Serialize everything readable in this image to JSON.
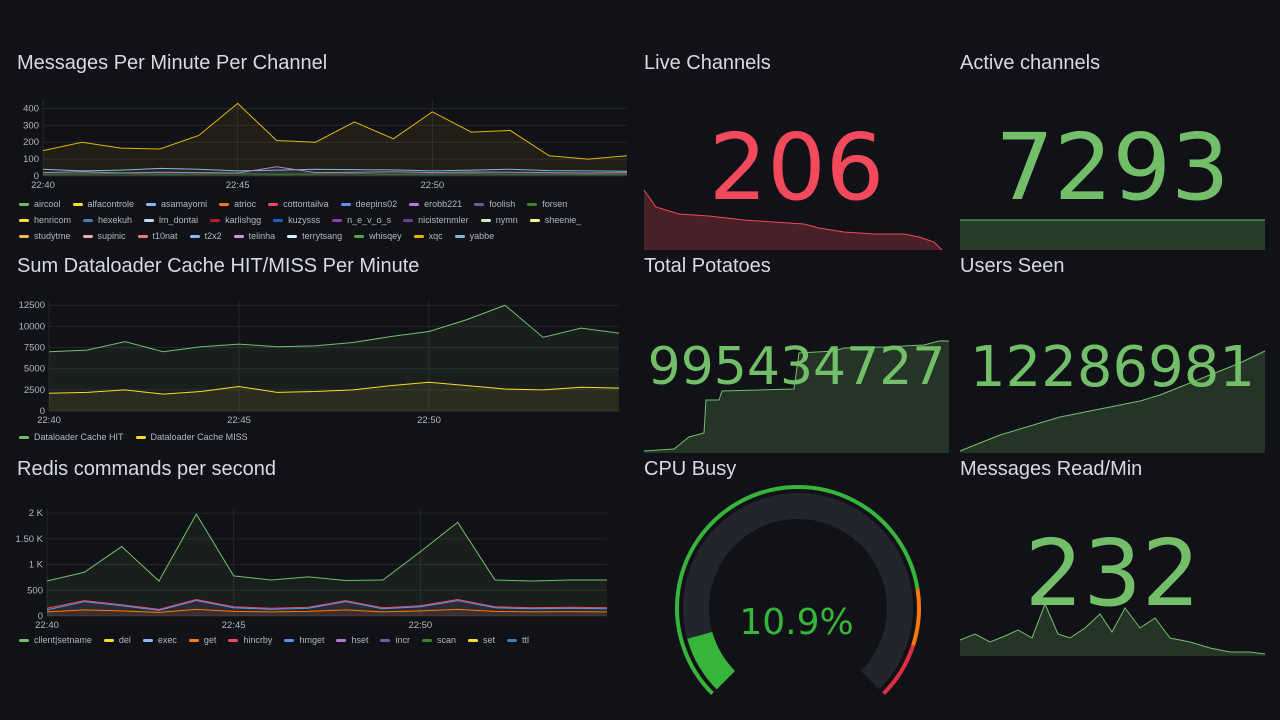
{
  "colors": {
    "green": "#73bf69",
    "red": "#f2495c",
    "bg": "#111217",
    "text": "#ccccdc",
    "grid": "#24262d"
  },
  "panels": {
    "messages": {
      "title": "Messages Per Minute Per Channel",
      "legend": [
        {
          "name": "aircool",
          "color": "#73bf69"
        },
        {
          "name": "alfacontrole",
          "color": "#fade2a"
        },
        {
          "name": "asamayomi",
          "color": "#8ab8ff"
        },
        {
          "name": "atrioc",
          "color": "#ff780a"
        },
        {
          "name": "cottontailva",
          "color": "#f2495c"
        },
        {
          "name": "deepins02",
          "color": "#5794f2"
        },
        {
          "name": "erobb221",
          "color": "#b877d9"
        },
        {
          "name": "foolish",
          "color": "#705da0"
        },
        {
          "name": "forsen",
          "color": "#37872d"
        },
        {
          "name": "henricom",
          "color": "#fade2a"
        },
        {
          "name": "hexekuh",
          "color": "#447ebc"
        },
        {
          "name": "lm_dontai",
          "color": "#c0d8ff"
        },
        {
          "name": "karlishgg",
          "color": "#c4162a"
        },
        {
          "name": "kuzysss",
          "color": "#1f60c4"
        },
        {
          "name": "n_e_v_o_s",
          "color": "#8f3bb8"
        },
        {
          "name": "nicistemmler",
          "color": "#6e3da0"
        },
        {
          "name": "nymn",
          "color": "#c8f2c2"
        },
        {
          "name": "sheenie_",
          "color": "#fff899"
        },
        {
          "name": "studytme",
          "color": "#ffb357"
        },
        {
          "name": "supinic",
          "color": "#ffa6b0"
        },
        {
          "name": "t10nat",
          "color": "#ff7383"
        },
        {
          "name": "t2x2",
          "color": "#8ab8ff"
        },
        {
          "name": "telinha",
          "color": "#ca95e5"
        },
        {
          "name": "terrytsang",
          "color": "#caf2ff"
        },
        {
          "name": "whisqey",
          "color": "#56a64b"
        },
        {
          "name": "xqc",
          "color": "#e0b400"
        },
        {
          "name": "yabbe",
          "color": "#73bfd8"
        }
      ]
    },
    "cache": {
      "title": "Sum Dataloader Cache HIT/MISS Per Minute",
      "legend": [
        {
          "name": "Dataloader Cache HIT",
          "color": "#73bf69"
        },
        {
          "name": "Dataloader Cache MISS",
          "color": "#fade2a"
        }
      ]
    },
    "redis": {
      "title": "Redis commands per second",
      "legend": [
        {
          "name": "client|setname",
          "color": "#73bf69"
        },
        {
          "name": "del",
          "color": "#fade2a"
        },
        {
          "name": "exec",
          "color": "#8ab8ff"
        },
        {
          "name": "get",
          "color": "#ff780a"
        },
        {
          "name": "hincrby",
          "color": "#f2495c"
        },
        {
          "name": "hmget",
          "color": "#5794f2"
        },
        {
          "name": "hset",
          "color": "#b877d9"
        },
        {
          "name": "incr",
          "color": "#705da0"
        },
        {
          "name": "scan",
          "color": "#37872d"
        },
        {
          "name": "set",
          "color": "#fade2a"
        },
        {
          "name": "ttl",
          "color": "#447ebc"
        }
      ]
    },
    "live": {
      "title": "Live Channels",
      "value": "206",
      "color": "#f2495c"
    },
    "active": {
      "title": "Active channels",
      "value": "7293",
      "color": "#73bf69"
    },
    "potatoes": {
      "title": "Total Potatoes",
      "value": "995434727",
      "color": "#73bf69"
    },
    "users": {
      "title": "Users Seen",
      "value": "12286981",
      "color": "#73bf69"
    },
    "cpu": {
      "title": "CPU Busy",
      "value": "10.9%",
      "percent": 10.9,
      "color": "#37b43a"
    },
    "readmin": {
      "title": "Messages Read/Min",
      "value": "232",
      "color": "#73bf69"
    }
  },
  "chart_data": [
    {
      "type": "line",
      "title": "Messages Per Minute Per Channel",
      "x": [
        "22:40",
        "22:41",
        "22:42",
        "22:43",
        "22:44",
        "22:45",
        "22:46",
        "22:47",
        "22:48",
        "22:49",
        "22:50",
        "22:51",
        "22:52",
        "22:53",
        "22:54",
        "22:55"
      ],
      "xticks": [
        "22:40",
        "22:45",
        "22:50"
      ],
      "yticks": [
        "0",
        "100",
        "200",
        "300",
        "400"
      ],
      "ylim": [
        0,
        450
      ],
      "series": [
        {
          "name": "xqc",
          "values": [
            150,
            200,
            165,
            160,
            240,
            430,
            210,
            200,
            320,
            220,
            380,
            260,
            270,
            120,
            100,
            120
          ]
        },
        {
          "name": "yabbe",
          "values": [
            40,
            30,
            35,
            45,
            40,
            30,
            35,
            40,
            38,
            36,
            30,
            35,
            40,
            32,
            30,
            28
          ]
        },
        {
          "name": "erobb221",
          "values": [
            20,
            25,
            18,
            22,
            20,
            18,
            55,
            20,
            22,
            25,
            20,
            24,
            22,
            20,
            18,
            20
          ]
        },
        {
          "name": "forsen",
          "values": [
            10,
            12,
            15,
            10,
            12,
            14,
            10,
            12,
            15,
            10,
            12,
            14,
            10,
            12,
            10,
            10
          ]
        }
      ]
    },
    {
      "type": "line",
      "title": "Sum Dataloader Cache HIT/MISS Per Minute",
      "x": [
        "22:40",
        "22:41",
        "22:42",
        "22:43",
        "22:44",
        "22:45",
        "22:46",
        "22:47",
        "22:48",
        "22:49",
        "22:50",
        "22:51",
        "22:52",
        "22:53",
        "22:54",
        "22:55"
      ],
      "xticks": [
        "22:40",
        "22:45",
        "22:50"
      ],
      "yticks": [
        "0",
        "2500",
        "5000",
        "7500",
        "10000",
        "12500"
      ],
      "ylim": [
        0,
        13000
      ],
      "series": [
        {
          "name": "Dataloader Cache HIT",
          "values": [
            7000,
            7200,
            8200,
            7000,
            7600,
            7900,
            7600,
            7700,
            8100,
            8800,
            9400,
            10800,
            12500,
            8700,
            9800,
            9200
          ]
        },
        {
          "name": "Dataloader Cache MISS",
          "values": [
            2100,
            2200,
            2500,
            2000,
            2300,
            2900,
            2200,
            2300,
            2500,
            3000,
            3400,
            3000,
            2600,
            2500,
            2800,
            2700
          ]
        }
      ]
    },
    {
      "type": "line",
      "title": "Redis commands per second",
      "x": [
        "22:40",
        "22:41",
        "22:42",
        "22:43",
        "22:44",
        "22:45",
        "22:46",
        "22:47",
        "22:48",
        "22:49",
        "22:50",
        "22:51",
        "22:52",
        "22:53",
        "22:54",
        "22:55"
      ],
      "xticks": [
        "22:40",
        "22:45",
        "22:50"
      ],
      "yticks": [
        "0",
        "500",
        "1 K",
        "1.50 K",
        "2 K"
      ],
      "ylim": [
        0,
        2100
      ],
      "series": [
        {
          "name": "client|setname",
          "values": [
            680,
            850,
            1350,
            680,
            1980,
            780,
            700,
            760,
            690,
            700,
            1250,
            1820,
            700,
            680,
            700,
            700
          ]
        },
        {
          "name": "hincrby",
          "values": [
            150,
            300,
            220,
            130,
            320,
            180,
            150,
            170,
            300,
            160,
            200,
            320,
            180,
            160,
            170,
            160
          ]
        },
        {
          "name": "hmget",
          "values": [
            120,
            280,
            200,
            110,
            300,
            160,
            130,
            150,
            280,
            140,
            180,
            300,
            160,
            140,
            150,
            140
          ]
        },
        {
          "name": "get",
          "values": [
            80,
            120,
            100,
            70,
            130,
            90,
            80,
            90,
            120,
            80,
            100,
            130,
            90,
            80,
            85,
            80
          ]
        }
      ]
    }
  ]
}
